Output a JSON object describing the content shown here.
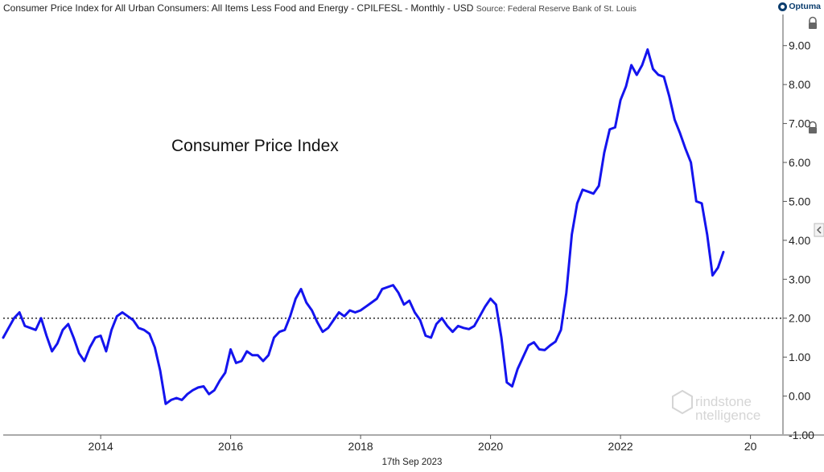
{
  "header": {
    "title": "Consumer Price Index for All Urban Consumers: All Items Less Food and Energy - CPILFESL - Monthly - USD",
    "source": "Source: Federal Reserve Bank of St. Louis",
    "brand": "Optuma"
  },
  "date_label": "17th Sep 2023",
  "watermark": {
    "line1": "rindstone",
    "line2": "ntelligence"
  },
  "colors": {
    "line": "#1414ee",
    "reference": "#000000",
    "axis": "#555555"
  },
  "icons": [
    "lock-icon",
    "lock-icon",
    "collapse-arrow-icon"
  ],
  "chart_data": {
    "type": "line",
    "annotation": "Consumer Price Index",
    "x_tick_labels": [
      "2014",
      "2016",
      "2018",
      "2020",
      "2022",
      "20"
    ],
    "y_tick_labels": [
      "9.00",
      "8.00",
      "7.00",
      "6.00",
      "5.00",
      "4.00",
      "3.00",
      "2.00",
      "1.00",
      "0.00",
      "-1.00"
    ],
    "ylim": [
      -1.0,
      9.8
    ],
    "xlim": [
      "2012-07",
      "2024-07"
    ],
    "reference_line": {
      "y": 2.0,
      "style": "dotted"
    },
    "grid": false,
    "x": [
      "2012-07",
      "2012-08",
      "2012-09",
      "2012-10",
      "2012-11",
      "2012-12",
      "2013-01",
      "2013-02",
      "2013-03",
      "2013-04",
      "2013-05",
      "2013-06",
      "2013-07",
      "2013-08",
      "2013-09",
      "2013-10",
      "2013-11",
      "2013-12",
      "2014-01",
      "2014-02",
      "2014-03",
      "2014-04",
      "2014-05",
      "2014-06",
      "2014-07",
      "2014-08",
      "2014-09",
      "2014-10",
      "2014-11",
      "2014-12",
      "2015-01",
      "2015-02",
      "2015-03",
      "2015-04",
      "2015-05",
      "2015-06",
      "2015-07",
      "2015-08",
      "2015-09",
      "2015-10",
      "2015-11",
      "2015-12",
      "2016-01",
      "2016-02",
      "2016-03",
      "2016-04",
      "2016-05",
      "2016-06",
      "2016-07",
      "2016-08",
      "2016-09",
      "2016-10",
      "2016-11",
      "2016-12",
      "2017-01",
      "2017-02",
      "2017-03",
      "2017-04",
      "2017-05",
      "2017-06",
      "2017-07",
      "2017-08",
      "2017-09",
      "2017-10",
      "2017-11",
      "2017-12",
      "2018-01",
      "2018-02",
      "2018-03",
      "2018-04",
      "2018-05",
      "2018-06",
      "2018-07",
      "2018-08",
      "2018-09",
      "2018-10",
      "2018-11",
      "2018-12",
      "2019-01",
      "2019-02",
      "2019-03",
      "2019-04",
      "2019-05",
      "2019-06",
      "2019-07",
      "2019-08",
      "2019-09",
      "2019-10",
      "2019-11",
      "2019-12",
      "2020-01",
      "2020-02",
      "2020-03",
      "2020-04",
      "2020-05",
      "2020-06",
      "2020-07",
      "2020-08",
      "2020-09",
      "2020-10",
      "2020-11",
      "2020-12",
      "2021-01",
      "2021-02",
      "2021-03",
      "2021-04",
      "2021-05",
      "2021-06",
      "2021-07",
      "2021-08",
      "2021-09",
      "2021-10",
      "2021-11",
      "2021-12",
      "2022-01",
      "2022-02",
      "2022-03",
      "2022-04",
      "2022-05",
      "2022-06",
      "2022-07",
      "2022-08",
      "2022-09",
      "2022-10",
      "2022-11",
      "2022-12",
      "2023-01",
      "2023-02",
      "2023-03",
      "2023-04",
      "2023-05",
      "2023-06",
      "2023-07",
      "2023-08"
    ],
    "series": [
      {
        "values": [
          1.5,
          1.75,
          2.0,
          2.15,
          1.8,
          1.75,
          1.7,
          2.0,
          1.55,
          1.15,
          1.35,
          1.7,
          1.85,
          1.5,
          1.1,
          0.9,
          1.25,
          1.5,
          1.55,
          1.15,
          1.7,
          2.05,
          2.15,
          2.05,
          1.95,
          1.75,
          1.7,
          1.6,
          1.25,
          0.65,
          -0.2,
          -0.1,
          -0.05,
          -0.1,
          0.05,
          0.15,
          0.22,
          0.25,
          0.05,
          0.15,
          0.4,
          0.6,
          1.2,
          0.85,
          0.9,
          1.15,
          1.05,
          1.05,
          0.9,
          1.05,
          1.5,
          1.65,
          1.7,
          2.05,
          2.5,
          2.75,
          2.4,
          2.2,
          1.9,
          1.65,
          1.75,
          1.95,
          2.15,
          2.05,
          2.2,
          2.15,
          2.2,
          2.3,
          2.4,
          2.5,
          2.75,
          2.8,
          2.85,
          2.65,
          2.35,
          2.45,
          2.15,
          1.95,
          1.55,
          1.5,
          1.85,
          2.0,
          1.8,
          1.65,
          1.8,
          1.75,
          1.72,
          1.8,
          2.05,
          2.3,
          2.5,
          2.35,
          1.5,
          0.35,
          0.25,
          0.7,
          1.0,
          1.3,
          1.38,
          1.2,
          1.18,
          1.3,
          1.4,
          1.7,
          2.65,
          4.15,
          4.95,
          5.3,
          5.25,
          5.2,
          5.4,
          6.25,
          6.85,
          6.9,
          7.6,
          7.95,
          8.5,
          8.25,
          8.5,
          8.9,
          8.4,
          8.25,
          8.2,
          7.7,
          7.1,
          6.75,
          6.35,
          6.0,
          5.0,
          4.95,
          4.15,
          3.1,
          3.3,
          3.7
        ]
      }
    ]
  }
}
